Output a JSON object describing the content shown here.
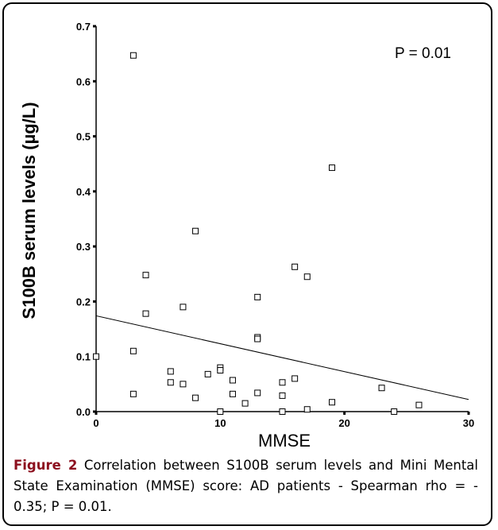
{
  "chart_data": {
    "type": "scatter",
    "xlabel": "MMSE",
    "ylabel": "S100B serum levels (µg/L)",
    "annotation": "P = 0.01",
    "xlim": [
      0,
      30
    ],
    "ylim": [
      0,
      0.7
    ],
    "xticks": [
      "0",
      "10",
      "20",
      "30"
    ],
    "yticks": [
      "0.0",
      "0.1",
      "0.2",
      "0.3",
      "0.4",
      "0.5",
      "0.6",
      "0.7"
    ],
    "grid": false,
    "points": [
      {
        "x": 0,
        "y": 0.1
      },
      {
        "x": 3,
        "y": 0.647
      },
      {
        "x": 3,
        "y": 0.11
      },
      {
        "x": 3,
        "y": 0.032
      },
      {
        "x": 4,
        "y": 0.248
      },
      {
        "x": 4,
        "y": 0.178
      },
      {
        "x": 6,
        "y": 0.073
      },
      {
        "x": 6,
        "y": 0.053
      },
      {
        "x": 7,
        "y": 0.19
      },
      {
        "x": 7,
        "y": 0.05
      },
      {
        "x": 8,
        "y": 0.328
      },
      {
        "x": 8,
        "y": 0.025
      },
      {
        "x": 9,
        "y": 0.068
      },
      {
        "x": 10,
        "y": 0.08
      },
      {
        "x": 10,
        "y": 0.075
      },
      {
        "x": 10,
        "y": 0.0
      },
      {
        "x": 11,
        "y": 0.057
      },
      {
        "x": 11,
        "y": 0.032
      },
      {
        "x": 12,
        "y": 0.015
      },
      {
        "x": 13,
        "y": 0.208
      },
      {
        "x": 13,
        "y": 0.135
      },
      {
        "x": 13,
        "y": 0.132
      },
      {
        "x": 13,
        "y": 0.034
      },
      {
        "x": 15,
        "y": 0.053
      },
      {
        "x": 15,
        "y": 0.029
      },
      {
        "x": 15,
        "y": 0.0
      },
      {
        "x": 16,
        "y": 0.263
      },
      {
        "x": 16,
        "y": 0.06
      },
      {
        "x": 17,
        "y": 0.245
      },
      {
        "x": 17,
        "y": 0.004
      },
      {
        "x": 19,
        "y": 0.443
      },
      {
        "x": 19,
        "y": 0.017
      },
      {
        "x": 23,
        "y": 0.043
      },
      {
        "x": 24,
        "y": 0.0
      },
      {
        "x": 26,
        "y": 0.012
      }
    ],
    "fit_line": {
      "x": [
        0,
        30
      ],
      "y": [
        0.174,
        0.022
      ]
    }
  },
  "caption": {
    "figure_label": "Figure 2",
    "text": " Correlation between S100B serum levels and Mini Mental State Examination (MMSE) score: AD patients - Spearman rho = - 0.35; P = 0.01."
  }
}
